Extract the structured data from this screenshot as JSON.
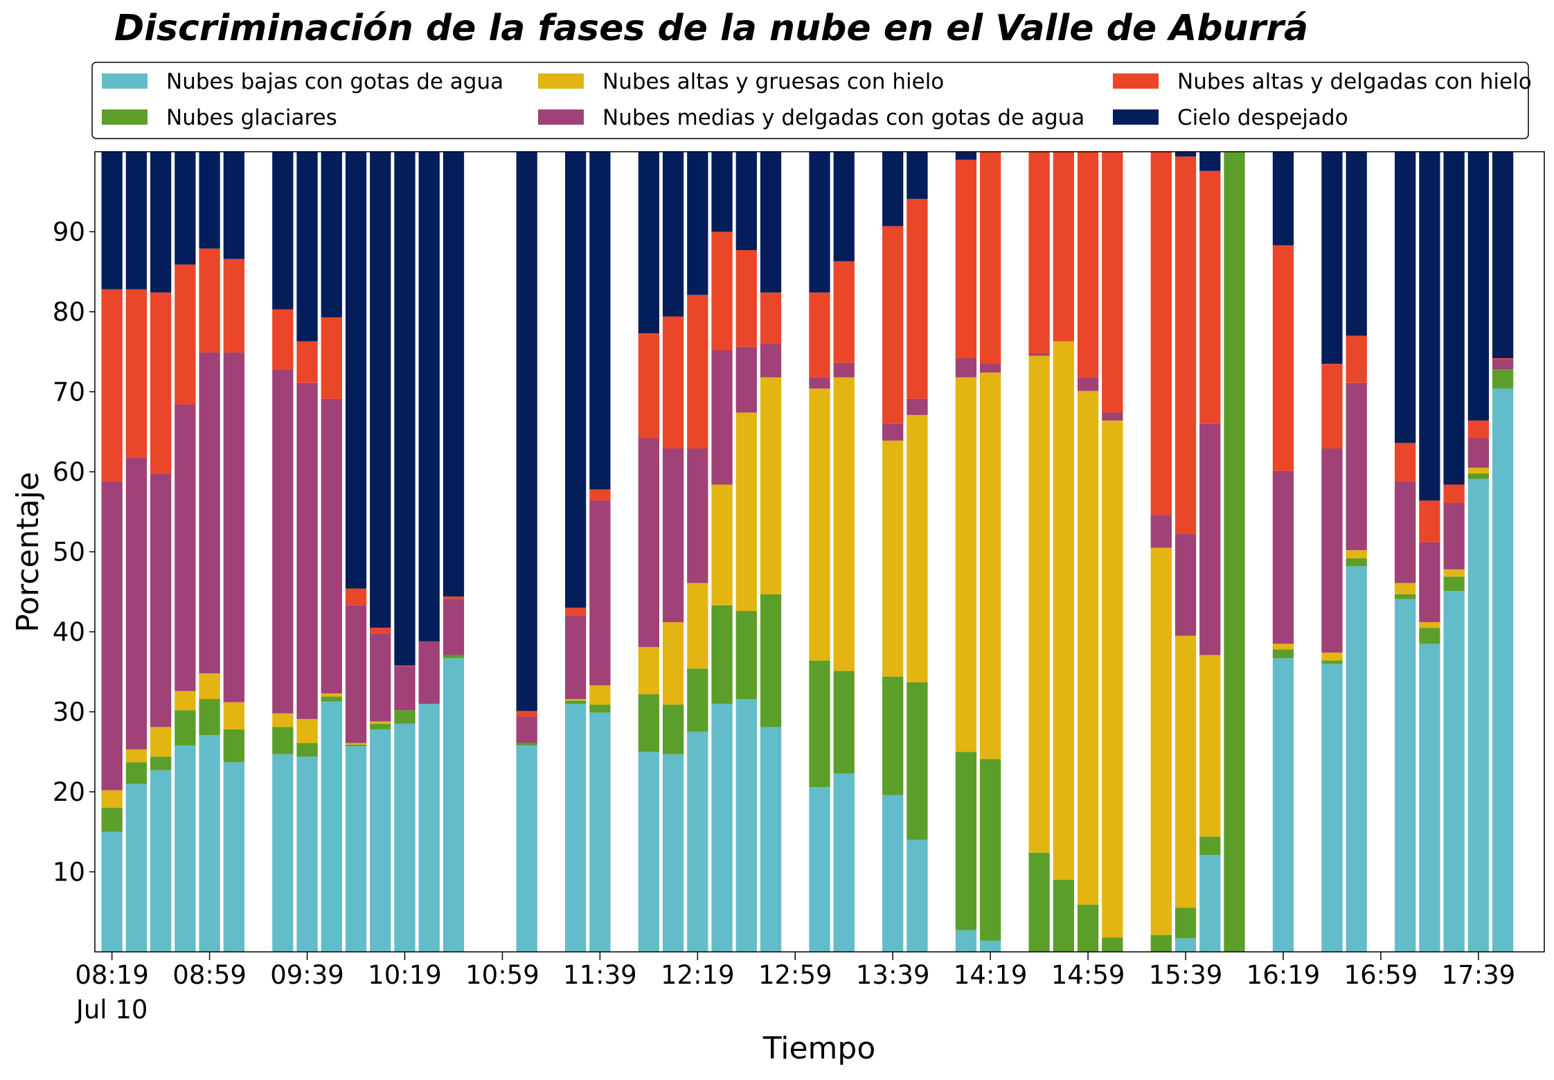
{
  "chart_data": {
    "type": "stacked_bar",
    "title": "Discriminación de la fases de la nube en el Valle de Aburrá",
    "xlabel": "Tiempo",
    "ylabel": "Porcentaje",
    "x_date_label": "Jul 10",
    "x": [
      "08:19",
      "08:29",
      "08:39",
      "08:49",
      "08:59",
      "09:09",
      "09:29",
      "09:39",
      "09:49",
      "09:59",
      "10:09",
      "10:19",
      "10:29",
      "10:39",
      "11:09",
      "11:29",
      "11:39",
      "11:59",
      "12:09",
      "12:19",
      "12:29",
      "12:39",
      "12:49",
      "13:09",
      "13:19",
      "13:39",
      "13:49",
      "14:09",
      "14:19",
      "14:39",
      "14:49",
      "14:59",
      "15:09",
      "15:29",
      "15:39",
      "15:49",
      "15:59",
      "16:19",
      "16:39",
      "16:49",
      "17:09",
      "17:19",
      "17:29",
      "17:39",
      "17:49"
    ],
    "xlim": [
      "08:12",
      "18:06"
    ],
    "xticks": [
      "08:19",
      "08:59",
      "09:39",
      "10:19",
      "10:59",
      "11:39",
      "12:19",
      "12:59",
      "13:39",
      "14:19",
      "14:59",
      "15:39",
      "16:19",
      "16:59",
      "17:39"
    ],
    "ylim": [
      0,
      100
    ],
    "yticks": [
      10,
      20,
      30,
      40,
      50,
      60,
      70,
      80,
      90
    ],
    "grid": false,
    "legend": "top",
    "series": [
      {
        "name": "Nubes bajas con gotas de agua",
        "color": "#63bcc9",
        "values": [
          15,
          21,
          22.7,
          25.8,
          27.1,
          23.7,
          24.7,
          24.4,
          31.3,
          25.7,
          27.8,
          28.5,
          31,
          36.7,
          25.8,
          31,
          29.9,
          25,
          24.7,
          27.5,
          31,
          31.6,
          28.1,
          20.6,
          22.3,
          19.6,
          14,
          2.7,
          1.4,
          0,
          0,
          0,
          0,
          0,
          1.7,
          12.1,
          0,
          36.7,
          36,
          48.2,
          44.1,
          38.5,
          45.1,
          59.1,
          70.4
        ]
      },
      {
        "name": "Nubes glaciares",
        "color": "#5c9e2a",
        "values": [
          3,
          2.7,
          1.7,
          4.4,
          4.5,
          4.1,
          3.4,
          1.7,
          0.6,
          0.2,
          0.7,
          1.7,
          0,
          0.4,
          0.3,
          0.4,
          1,
          7.2,
          6.2,
          7.9,
          12.3,
          11,
          16.6,
          15.8,
          12.8,
          14.8,
          19.7,
          22.3,
          22.7,
          12.4,
          9,
          5.9,
          1.8,
          2.1,
          3.8,
          2.3,
          100,
          1.1,
          0.4,
          1,
          0.6,
          2,
          1.8,
          0.7,
          2.4
        ]
      },
      {
        "name": "Nubes altas y gruesas con hielo",
        "color": "#e2b513",
        "values": [
          2.2,
          1.6,
          3.7,
          2.4,
          3.2,
          3.4,
          1.7,
          3,
          0.4,
          0.2,
          0.3,
          0,
          0,
          0,
          0,
          0.2,
          2.4,
          5.9,
          10.3,
          10.7,
          15.1,
          24.8,
          27.1,
          34,
          36.7,
          29.5,
          33.4,
          46.8,
          48.3,
          62.1,
          67.3,
          64.2,
          64.6,
          48.4,
          34,
          22.7,
          0,
          0.7,
          1,
          1,
          1.4,
          0.7,
          0.9,
          0.7,
          0
        ]
      },
      {
        "name": "Nubes medias y delgadas con gotas de agua",
        "color": "#a04177",
        "values": [
          38.6,
          36.5,
          31.7,
          35.8,
          40.1,
          43.7,
          43,
          42,
          36.8,
          17.2,
          11,
          5.5,
          7.8,
          7,
          3.3,
          10.4,
          23.1,
          26.1,
          21.7,
          16.8,
          16.8,
          8.2,
          4.2,
          1.4,
          1.8,
          2.1,
          2,
          2.4,
          1.1,
          0.3,
          0,
          1.7,
          1,
          4.1,
          12.7,
          28.9,
          0,
          21.6,
          25.5,
          20.9,
          12.7,
          10,
          8.3,
          3.7,
          1.3
        ]
      },
      {
        "name": "Nubes altas y delgadas con hielo",
        "color": "#ea462a",
        "values": [
          24,
          21,
          22.6,
          17.5,
          13,
          11.7,
          7.5,
          5.2,
          10.2,
          2.1,
          0.7,
          0.1,
          0,
          0.3,
          0.7,
          1,
          1.4,
          13.1,
          16.5,
          19.2,
          14.8,
          12.1,
          6.4,
          10.6,
          12.7,
          24.7,
          25,
          24.8,
          26.5,
          25.2,
          23.7,
          28.2,
          32.6,
          45.4,
          47.2,
          31.6,
          0,
          28.2,
          10.6,
          5.9,
          4.8,
          5.2,
          2.3,
          2.2,
          0.1
        ]
      },
      {
        "name": "Cielo despejado",
        "color": "#041e5c",
        "values": [
          17.2,
          17.2,
          17.6,
          14.1,
          12.1,
          13.4,
          19.7,
          23.7,
          20.7,
          54.6,
          59.5,
          64.2,
          61.2,
          55.6,
          69.9,
          57,
          42.2,
          22.7,
          20.6,
          17.9,
          10,
          12.3,
          17.6,
          17.6,
          13.7,
          9.3,
          5.9,
          1,
          0,
          0,
          0,
          0,
          0,
          0,
          0.6,
          2.4,
          0,
          11.7,
          26.5,
          23,
          36.4,
          43.6,
          41.6,
          33.6,
          25.8
        ]
      }
    ]
  }
}
